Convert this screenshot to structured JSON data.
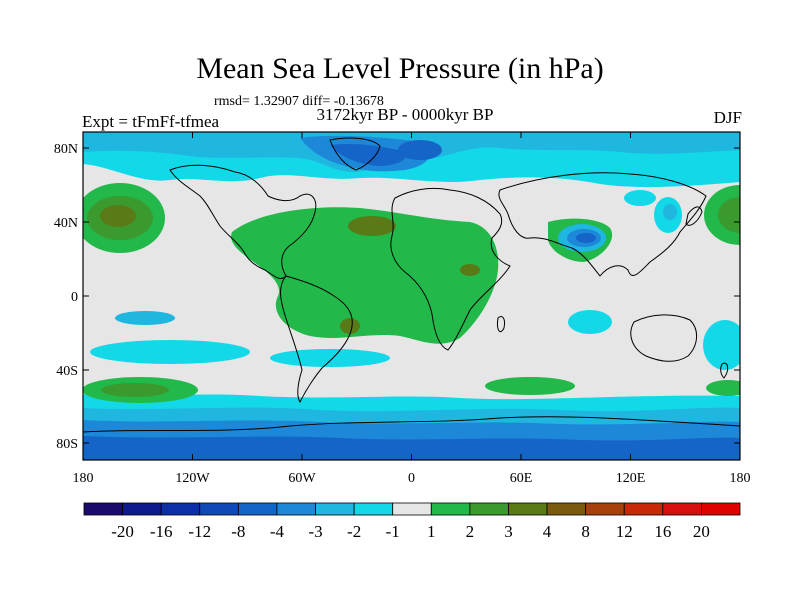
{
  "title": "Mean Sea Level Pressure (in hPa)",
  "stats": "rmsd= 1.32907 diff= -0.13678",
  "experiment": "Expt = tFmFf-tfmea",
  "period": "3172kyr BP - 0000kyr BP",
  "season": "DJF",
  "y_ticks": [
    "80N",
    "40N",
    "0",
    "40S",
    "80S"
  ],
  "x_ticks": [
    "180",
    "120W",
    "60W",
    "0",
    "60E",
    "120E",
    "180"
  ],
  "colorbar": {
    "labels": [
      "-20",
      "-16",
      "-12",
      "-8",
      "-4",
      "-3",
      "-2",
      "-1",
      "1",
      "2",
      "3",
      "4",
      "8",
      "12",
      "16",
      "20"
    ],
    "colors": [
      "#1a0a6b",
      "#0f1a8c",
      "#0c2fa8",
      "#1048b8",
      "#1565c8",
      "#1e88d8",
      "#1fb6e0",
      "#12d8e8",
      "#e6e6e6",
      "#22b84a",
      "#3a9a2e",
      "#5a7a18",
      "#7a5a10",
      "#a8400c",
      "#c82808",
      "#d80f0f",
      "#e00000"
    ]
  },
  "colors": {
    "background": "#e6e6e6",
    "coast": "#000000"
  }
}
